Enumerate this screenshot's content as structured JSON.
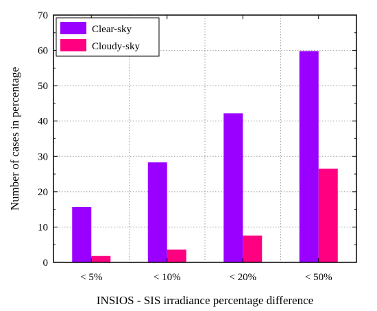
{
  "chart_data": {
    "type": "bar",
    "categories": [
      "< 5%",
      "< 10%",
      "< 20%",
      "< 50%"
    ],
    "series": [
      {
        "name": "Clear-sky",
        "color": "#9900ff",
        "values": [
          15.7,
          28.3,
          42.2,
          59.8
        ]
      },
      {
        "name": "Cloudy-sky",
        "color": "#ff0080",
        "values": [
          1.8,
          3.6,
          7.6,
          26.5
        ]
      }
    ],
    "title": "",
    "xlabel": "INSIOS - SIS irradiance percentage difference",
    "ylabel": "Number of cases in percentage",
    "ylim": [
      0,
      70
    ],
    "yticks": [
      "0",
      "10",
      "20",
      "30",
      "40",
      "50",
      "60",
      "70"
    ],
    "grid": true,
    "legend": "top-left"
  }
}
